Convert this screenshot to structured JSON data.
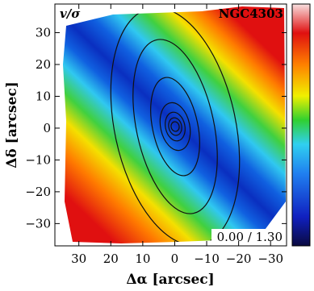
{
  "chart_data": {
    "type": "map",
    "title": "NGC4303",
    "quantity": "v/σ",
    "color_range_label": "0.00 / 1.30",
    "x_label": "Δα [arcsec]",
    "y_label": "Δδ [arcsec]",
    "xlim": [
      37.5,
      -35
    ],
    "ylim": [
      -37,
      39
    ],
    "xticks": [
      30,
      20,
      10,
      0,
      {
        "value": -10,
        "label": "−10"
      },
      {
        "value": -20,
        "label": "−20"
      },
      {
        "value": -30,
        "label": "−30"
      }
    ],
    "yticks": [
      {
        "value": -30,
        "label": "−30"
      },
      {
        "value": -20,
        "label": "−20"
      },
      {
        "value": -10,
        "label": "−10"
      },
      0,
      10,
      20,
      30
    ]
  }
}
